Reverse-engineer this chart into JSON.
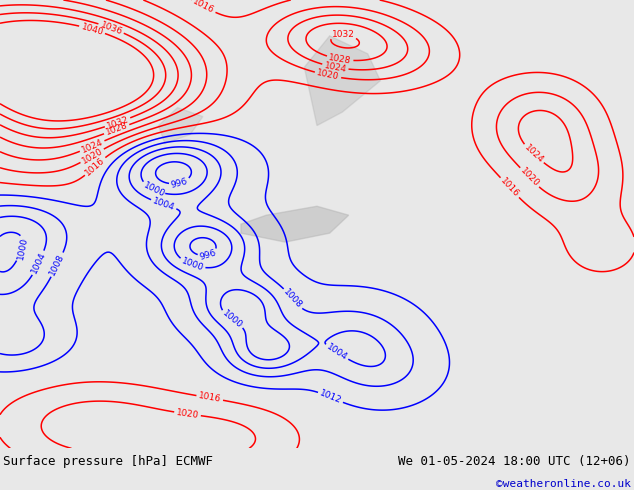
{
  "title_left": "Surface pressure [hPa] ECMWF",
  "title_right": "We 01-05-2024 18:00 UTC (12+06)",
  "credit": "©weatheronline.co.uk",
  "bg_map_color": "#c8e4b8",
  "footer_bg": "#e8e8e8",
  "text_color": "#000000",
  "credit_color": "#0000cc",
  "fig_width": 6.34,
  "fig_height": 4.9,
  "dpi": 100
}
